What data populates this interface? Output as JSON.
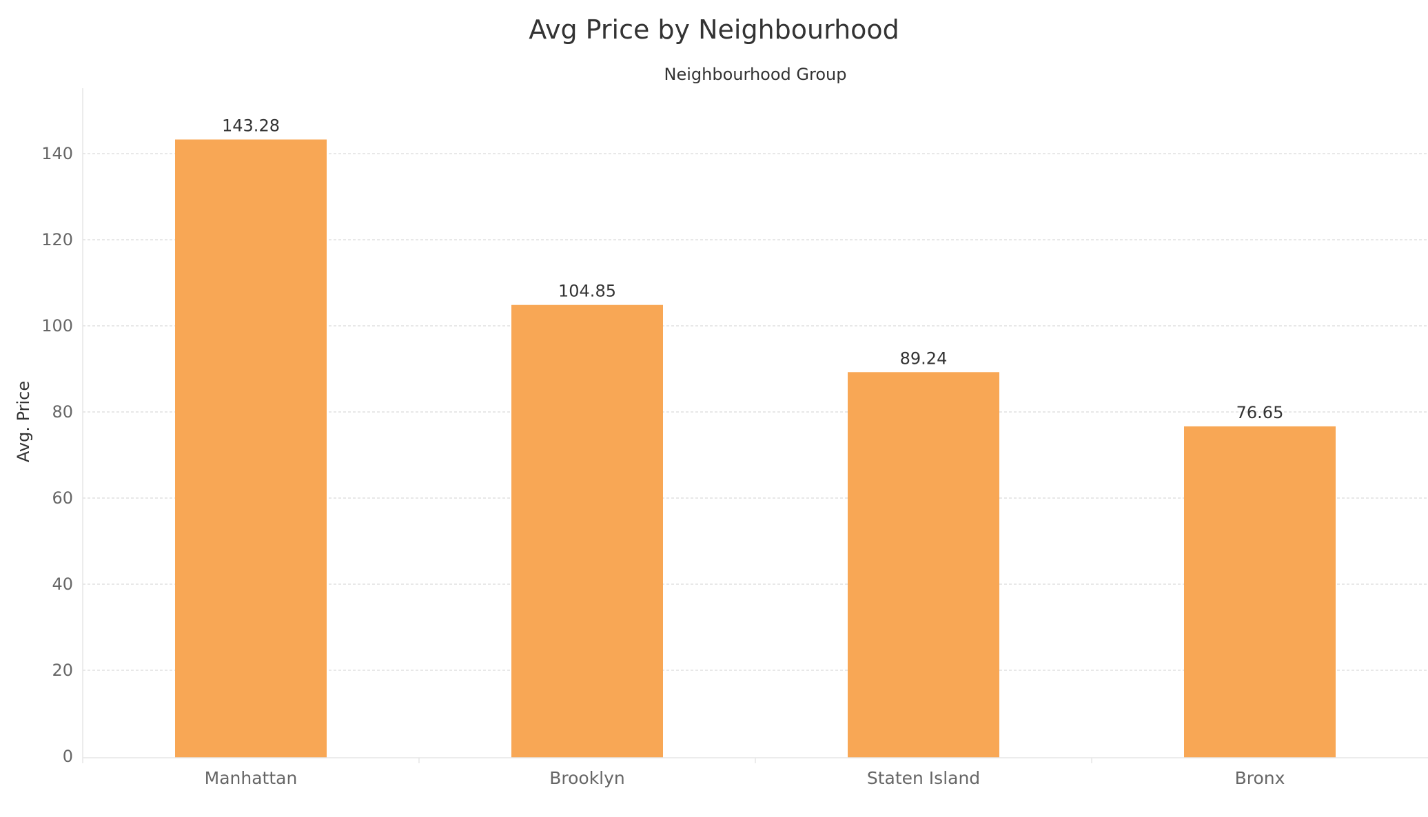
{
  "chart_data": {
    "type": "bar",
    "title": "Avg Price by Neighbourhood",
    "column_header": "Neighbourhood Group",
    "xlabel": "",
    "ylabel": "Avg. Price",
    "categories": [
      "Manhattan",
      "Brooklyn",
      "Staten Island",
      "Bronx"
    ],
    "values": [
      143.28,
      104.85,
      89.24,
      76.65
    ],
    "value_labels": [
      "143.28",
      "104.85",
      "89.24",
      "76.65"
    ],
    "yticks": [
      0,
      20,
      40,
      60,
      80,
      100,
      120,
      140
    ],
    "ylim": [
      0,
      156
    ],
    "grid": true,
    "bar_color": "#F8A755",
    "grid_color": "#d9d9d9",
    "axis_color": "#e6e6e6"
  }
}
